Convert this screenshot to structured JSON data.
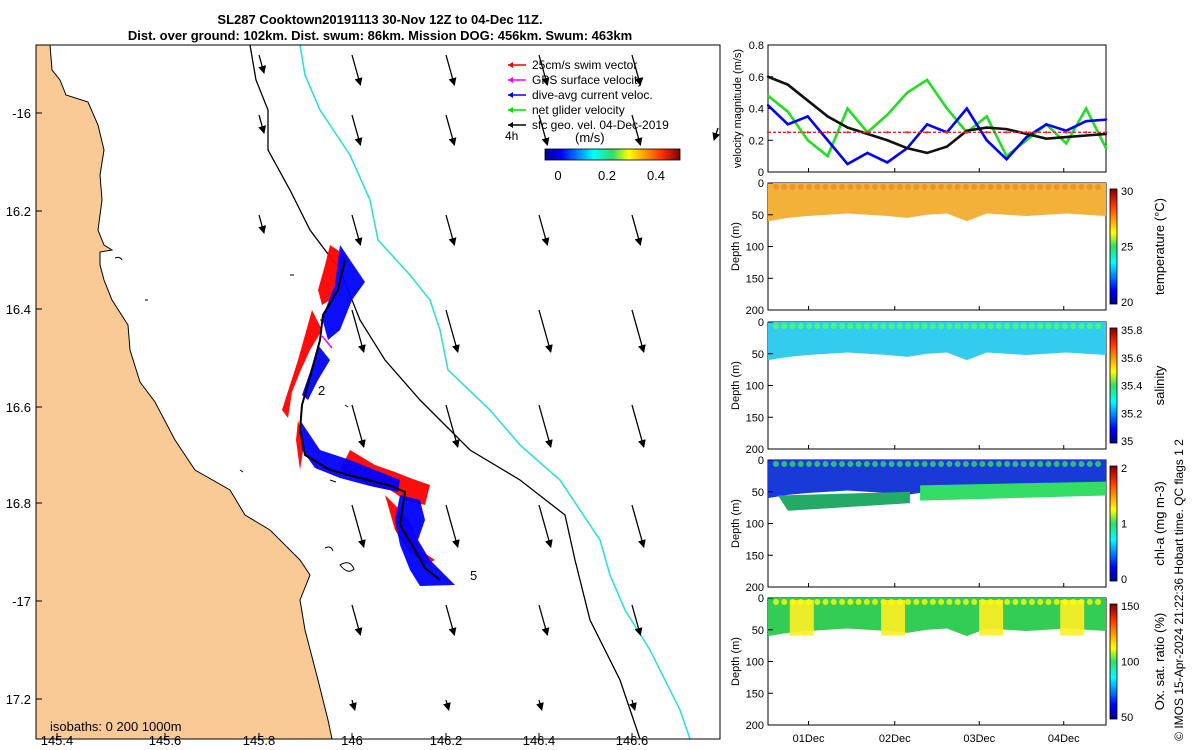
{
  "title_line1": "SL287 Cooktown20191113 30-Nov 12Z to 04-Dec 11Z.",
  "title_line2": "Dist. over ground: 102km. Dist. swum: 86km. Mission DOG: 456km. Swum: 463km",
  "map": {
    "lon_ticks": [
      "145.4",
      "145.6",
      "145.8",
      "146",
      "146.2",
      "146.4",
      "146.6"
    ],
    "lat_ticks": [
      "-16",
      "16.2",
      "16.4",
      "16.6",
      "16.8",
      "-17",
      "17.2"
    ],
    "legend": [
      {
        "label": "25cm/s swim vector",
        "color": "#ff0000"
      },
      {
        "label": "GPS surface velocity",
        "color": "#ff00ff"
      },
      {
        "label": "dive-avg current veloc.",
        "color": "#0000ff"
      },
      {
        "label": "net glider velocity",
        "color": "#00dd00"
      },
      {
        "label": "sfc geo. vel. 04-Dec-2019",
        "color": "#000000"
      }
    ],
    "legend_note": "4h",
    "colorbar": {
      "label": "(m/s)",
      "ticks": [
        "0",
        "0.2",
        "0.4"
      ]
    },
    "track_labels": [
      "2",
      "5"
    ],
    "isobaths": "isobaths: 0   200  1000m",
    "colors": {
      "land": "#f9ca96",
      "sea": "#ffffff",
      "isobath_200": "#000000",
      "isobath_1000": "#33dddd"
    }
  },
  "chart_data": [
    {
      "type": "line",
      "title": "",
      "ylabel": "velocity magnitude (m/s)",
      "ylim": [
        0,
        0.8
      ],
      "yticks": [
        "0",
        "0.2",
        "0.4",
        "0.6",
        "0.8"
      ],
      "x": [
        0,
        0.25,
        0.5,
        0.75,
        1,
        1.25,
        1.5,
        1.75,
        2,
        2.25,
        2.5,
        2.75,
        3,
        3.25,
        3.5,
        3.75,
        4,
        4.25
      ],
      "series": [
        {
          "name": "net glider velocity",
          "color": "#22dd22",
          "values": [
            0.48,
            0.38,
            0.2,
            0.1,
            0.4,
            0.25,
            0.36,
            0.5,
            0.58,
            0.4,
            0.25,
            0.35,
            0.1,
            0.2,
            0.3,
            0.18,
            0.4,
            0.15
          ]
        },
        {
          "name": "dive-avg current veloc.",
          "color": "#0000ff",
          "values": [
            0.42,
            0.3,
            0.35,
            0.2,
            0.05,
            0.12,
            0.06,
            0.15,
            0.3,
            0.25,
            0.4,
            0.2,
            0.08,
            0.22,
            0.3,
            0.26,
            0.32,
            0.33
          ]
        },
        {
          "name": "sfc geo. vel.",
          "color": "#111111",
          "values": [
            0.6,
            0.55,
            0.45,
            0.35,
            0.28,
            0.24,
            0.2,
            0.15,
            0.12,
            0.16,
            0.26,
            0.28,
            0.27,
            0.24,
            0.21,
            0.22,
            0.23,
            0.24
          ]
        },
        {
          "name": "swim speed",
          "color": "#ee2222",
          "dashed": true,
          "values": [
            0.25,
            0.25,
            0.25,
            0.25,
            0.25,
            0.25,
            0.25,
            0.25,
            0.25,
            0.25,
            0.25,
            0.25,
            0.25,
            0.25,
            0.25,
            0.25,
            0.25,
            0.25
          ]
        }
      ]
    },
    {
      "type": "heatmap",
      "ylabel": "Depth (m)",
      "yticks": [
        "0",
        "50",
        "100",
        "150",
        "200"
      ],
      "cbar_label": "temperature (°C)",
      "cbar_ticks": [
        "20",
        "25",
        "30"
      ],
      "profile_depth_m": [
        60,
        55,
        52,
        50,
        48,
        50,
        52,
        55,
        50,
        48,
        60,
        48,
        50,
        52,
        50,
        48,
        50,
        52
      ]
    },
    {
      "type": "heatmap",
      "ylabel": "Depth (m)",
      "yticks": [
        "0",
        "50",
        "100",
        "150",
        "200"
      ],
      "cbar_label": "salinity",
      "cbar_ticks": [
        "35",
        "35.2",
        "35.4",
        "35.6",
        "35.8"
      ]
    },
    {
      "type": "heatmap",
      "ylabel": "Depth (m)",
      "yticks": [
        "0",
        "50",
        "100",
        "150",
        "200"
      ],
      "cbar_label": "chl-a (mg m-3)",
      "cbar_ticks": [
        "0",
        "1",
        "2"
      ]
    },
    {
      "type": "heatmap",
      "ylabel": "Depth (m)",
      "yticks": [
        "0",
        "50",
        "100",
        "150",
        "200"
      ],
      "xticks": [
        "01Dec",
        "02Dec",
        "03Dec",
        "04Dec"
      ],
      "cbar_label": "Ox. sat. ratio (%)",
      "cbar_ticks": [
        "50",
        "100",
        "150"
      ]
    }
  ],
  "footer_note": "© IMOS 15-Apr-2024 21:22:36 Hobart time. QC flags 1  2"
}
